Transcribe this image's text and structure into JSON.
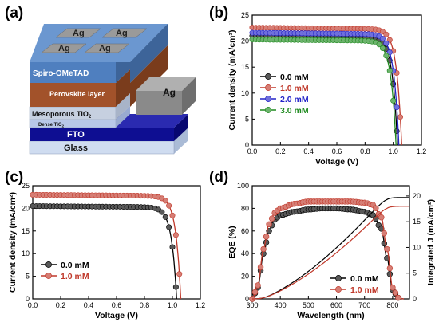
{
  "panel_labels": {
    "a": "(a)",
    "b": "(b)",
    "c": "(c)",
    "d": "(d)"
  },
  "device": {
    "ag_top": [
      "Ag",
      "Ag",
      "Ag",
      "Ag"
    ],
    "ag_side": "Ag",
    "layers": {
      "spiro": "Spiro-OMeTAD",
      "perovskite": "Perovskite layer",
      "meso": "Mesoporous TiO",
      "meso_sub": "2",
      "dense": "Dense TiO",
      "dense_sub": "2",
      "fto": "FTO",
      "glass": "Glass"
    },
    "colors": {
      "ag": "#9a9a9a",
      "spiro": "#4f7fbf",
      "perovskite": "#a2522a",
      "meso": "#c6d0e0",
      "dense": "#b8c8e8",
      "fto": "#0e0e92",
      "glass": "#cfdcf0"
    }
  },
  "chart_data": [
    {
      "id": "b",
      "type": "line",
      "xlabel": "Voltage (V)",
      "ylabel": "Current density (mA/cm²)",
      "xlim": [
        0.0,
        1.2
      ],
      "ylim": [
        0,
        25
      ],
      "xticks": [
        "0.0",
        "0.2",
        "0.4",
        "0.6",
        "0.8",
        "1.0",
        "1.2"
      ],
      "yticks": [
        "0",
        "5",
        "10",
        "15",
        "20",
        "25"
      ],
      "legend_position": "bottom-left",
      "series": [
        {
          "name": "0.0 mM",
          "color": "#000000",
          "jsc": 21.0,
          "voc": 1.03
        },
        {
          "name": "1.0 mM",
          "color": "#c0392b",
          "jsc": 22.6,
          "voc": 1.06
        },
        {
          "name": "2.0 mM",
          "color": "#2323c8",
          "jsc": 21.6,
          "voc": 1.04
        },
        {
          "name": "3.0 mM",
          "color": "#1f8a1f",
          "jsc": 20.3,
          "voc": 1.02
        }
      ]
    },
    {
      "id": "c",
      "type": "line",
      "xlabel": "Voltage (V)",
      "ylabel": "Current density (mA/cm²)",
      "xlim": [
        0.0,
        1.2
      ],
      "ylim": [
        0,
        25
      ],
      "xticks": [
        "0.0",
        "0.2",
        "0.4",
        "0.6",
        "0.8",
        "1.0",
        "1.2"
      ],
      "yticks": [
        "0",
        "5",
        "10",
        "15",
        "20",
        "25"
      ],
      "legend_position": "bottom-left",
      "series": [
        {
          "name": "0.0 mM",
          "color": "#000000",
          "jsc": 20.5,
          "voc": 1.03
        },
        {
          "name": "1.0 mM",
          "color": "#c0392b",
          "jsc": 23.0,
          "voc": 1.06
        }
      ]
    },
    {
      "id": "d",
      "type": "line",
      "xlabel": "Wavelength (nm)",
      "ylabel": "EQE (%)",
      "ylabel_right": "Integrated J (mA/cm²)",
      "xlim": [
        300,
        860
      ],
      "ylim": [
        0,
        100
      ],
      "ylim_right": [
        0,
        22
      ],
      "xticks": [
        "300",
        "400",
        "500",
        "600",
        "700",
        "800"
      ],
      "yticks": [
        "0",
        "20",
        "40",
        "60",
        "80",
        "100"
      ],
      "yticks_right": [
        "0",
        "5",
        "10",
        "15",
        "20"
      ],
      "legend_position": "bottom-right",
      "series": [
        {
          "name": "0.0 mM",
          "color": "#000000",
          "plateau": 80,
          "integrated_max": 19.7,
          "eqe": [
            [
              300,
              0
            ],
            [
              320,
              10
            ],
            [
              340,
              40
            ],
            [
              360,
              60
            ],
            [
              380,
              70
            ],
            [
              400,
              74
            ],
            [
              450,
              77
            ],
            [
              500,
              79
            ],
            [
              550,
              80
            ],
            [
              600,
              80
            ],
            [
              650,
              79
            ],
            [
              700,
              77
            ],
            [
              730,
              74
            ],
            [
              760,
              62
            ],
            [
              780,
              36
            ],
            [
              800,
              8
            ],
            [
              820,
              1
            ],
            [
              840,
              0
            ]
          ]
        },
        {
          "name": "1.0 mM",
          "color": "#c0392b",
          "plateau": 86,
          "integrated_max": 18.0,
          "eqe": [
            [
              300,
              0
            ],
            [
              320,
              12
            ],
            [
              340,
              44
            ],
            [
              360,
              66
            ],
            [
              380,
              76
            ],
            [
              400,
              80
            ],
            [
              450,
              84
            ],
            [
              500,
              86
            ],
            [
              550,
              86
            ],
            [
              600,
              86
            ],
            [
              650,
              86
            ],
            [
              700,
              85
            ],
            [
              730,
              83
            ],
            [
              760,
              72
            ],
            [
              780,
              44
            ],
            [
              800,
              10
            ],
            [
              820,
              1
            ],
            [
              840,
              0
            ]
          ]
        }
      ]
    }
  ]
}
